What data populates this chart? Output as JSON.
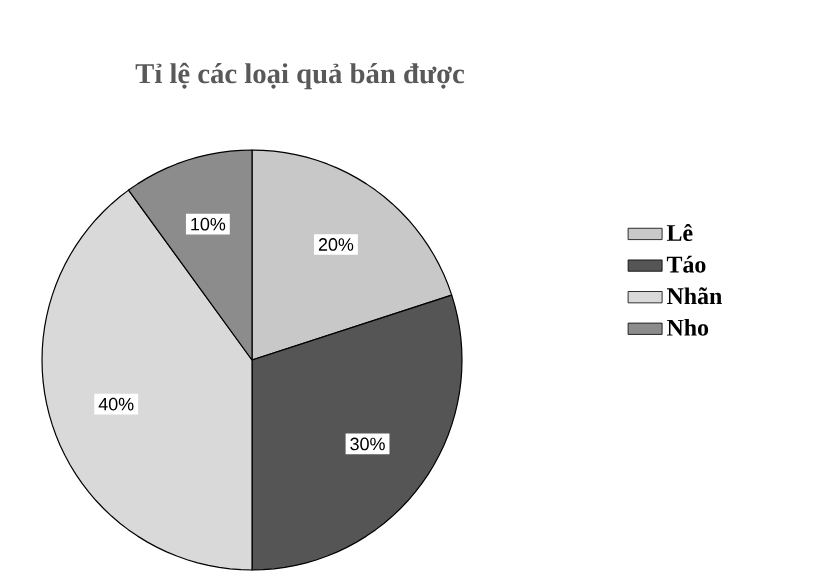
{
  "chart_data": {
    "type": "pie",
    "title": "Tỉ lệ các loại quả bán được",
    "categories": [
      "Lê",
      "Táo",
      "Nhãn",
      "Nho"
    ],
    "values": [
      20,
      30,
      40,
      10
    ],
    "colors": [
      "#c8c8c8",
      "#555555",
      "#d9d9d9",
      "#8c8c8c"
    ],
    "value_labels": [
      "20%",
      "30%",
      "40%",
      "10%"
    ],
    "legend": "right"
  }
}
